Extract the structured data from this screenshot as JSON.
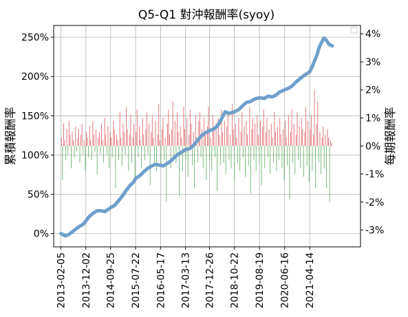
{
  "chart_data": {
    "type": "line",
    "title": "Q5-Q1 對沖報酬率(syoy)",
    "ylabel_left": "累積報酬率",
    "ylabel_right": "每期報酬率",
    "grid": true,
    "left_axis": {
      "ylim": [
        -17,
        265
      ],
      "ticks": [
        0,
        50,
        100,
        150,
        200,
        250
      ],
      "tick_labels": [
        "0%",
        "50%",
        "100%",
        "150%",
        "200%",
        "250%"
      ]
    },
    "right_axis": {
      "ylim": [
        -3.6,
        4.3
      ],
      "ticks": [
        -3,
        -2,
        -1,
        0,
        1,
        2,
        3,
        4
      ],
      "tick_labels": [
        "-3%",
        "-2%",
        "-1%",
        "0%",
        "1%",
        "2%",
        "3%",
        "4%"
      ]
    },
    "x_axis": {
      "range": [
        "2012-11-10",
        "2022-12-15"
      ],
      "ticks": [
        "2013-02-05",
        "2013-12-02",
        "2014-09-25",
        "2015-07-22",
        "2016-05-17",
        "2017-03-13",
        "2017-12-26",
        "2018-10-22",
        "2019-08-19",
        "2020-06-16",
        "2021-04-14"
      ]
    },
    "series": [
      {
        "kind": "line",
        "axis": "left",
        "color": "#6f9fca",
        "x": [
          "2013-02-05",
          "2013-04-01",
          "2013-05-15",
          "2013-07-01",
          "2013-09-01",
          "2013-11-01",
          "2013-12-02",
          "2014-01-15",
          "2014-03-01",
          "2014-04-15",
          "2014-06-01",
          "2014-07-15",
          "2014-09-01",
          "2014-09-25",
          "2014-11-15",
          "2015-01-01",
          "2015-02-15",
          "2015-04-01",
          "2015-05-15",
          "2015-07-01",
          "2015-07-22",
          "2015-09-15",
          "2015-11-01",
          "2015-12-15",
          "2016-02-01",
          "2016-03-15",
          "2016-05-17",
          "2016-06-15",
          "2016-08-01",
          "2016-09-15",
          "2016-11-01",
          "2016-12-15",
          "2017-02-01",
          "2017-03-13",
          "2017-05-01",
          "2017-06-15",
          "2017-08-01",
          "2017-09-15",
          "2017-11-01",
          "2017-12-26",
          "2018-02-15",
          "2018-04-01",
          "2018-05-15",
          "2018-07-01",
          "2018-08-15",
          "2018-10-22",
          "2018-12-15",
          "2019-02-01",
          "2019-03-15",
          "2019-05-01",
          "2019-06-15",
          "2019-08-19",
          "2019-10-15",
          "2019-12-01",
          "2020-01-15",
          "2020-03-01",
          "2020-04-15",
          "2020-06-16",
          "2020-08-01",
          "2020-09-15",
          "2020-11-01",
          "2020-12-15",
          "2021-02-01",
          "2021-04-14",
          "2021-05-15",
          "2021-06-15",
          "2021-07-15",
          "2021-08-01",
          "2021-09-01",
          "2021-10-01",
          "2021-11-01",
          "2021-12-01",
          "2022-01-10"
        ],
        "values": [
          0,
          -3,
          -1,
          3,
          8,
          12,
          16,
          22,
          26,
          29,
          29,
          28,
          31,
          33,
          36,
          42,
          48,
          55,
          61,
          66,
          70,
          74,
          79,
          83,
          86,
          88,
          87,
          86,
          89,
          92,
          97,
          101,
          104,
          107,
          108,
          112,
          118,
          124,
          128,
          131,
          133,
          137,
          145,
          155,
          153,
          155,
          158,
          163,
          167,
          168,
          171,
          173,
          172,
          175,
          174,
          176,
          180,
          183,
          185,
          188,
          193,
          197,
          201,
          206,
          213,
          221,
          229,
          236,
          243,
          249,
          246,
          241,
          239
        ]
      },
      {
        "kind": "bar",
        "axis": "right",
        "positive_color": "#e36a6a",
        "negative_color": "#6ab46a",
        "values": [
          0.3,
          -1.2,
          0.8,
          0.2,
          -0.5,
          0.6,
          -0.3,
          0.9,
          0.4,
          -0.8,
          0.5,
          0.2,
          -0.4,
          0.7,
          -0.2,
          0.3,
          0.6,
          -0.6,
          0.4,
          0.8,
          -0.3,
          0.2,
          -0.9,
          0.5,
          0.3,
          -0.4,
          0.7,
          0.2,
          -0.5,
          0.9,
          0.4,
          -0.2,
          0.6,
          -1.0,
          0.3,
          0.5,
          -0.3,
          0.8,
          0.2,
          -0.6,
          1.0,
          0.4,
          -0.3,
          0.7,
          -0.8,
          0.5,
          0.3,
          -0.4,
          0.9,
          0.6,
          -1.5,
          0.4,
          0.2,
          -0.5,
          1.2,
          0.3,
          -0.7,
          0.8,
          0.5,
          -0.3,
          1.4,
          0.6,
          -0.9,
          0.4,
          1.1,
          -0.6,
          0.3,
          0.8,
          -1.2,
          0.5,
          1.3,
          -0.4,
          0.7,
          0.2,
          -0.8,
          1.0,
          0.4,
          -0.5,
          0.6,
          1.2,
          -0.3,
          0.8,
          -1.4,
          0.5,
          1.1,
          0.3,
          -0.6,
          0.9,
          -0.9,
          0.4,
          1.5,
          0.2,
          -0.7,
          0.6,
          1.0,
          -0.5,
          0.3,
          -2.0,
          0.8,
          1.3,
          0.4,
          -0.8,
          0.6,
          1.6,
          -0.4,
          0.9,
          -0.6,
          1.2,
          0.5,
          -1.8,
          0.7,
          0.3,
          -0.9,
          1.4,
          0.6,
          -0.5,
          1.0,
          -1.1,
          0.4,
          1.3,
          0.8,
          -0.7,
          0.5,
          -1.5,
          1.1,
          0.3,
          -0.6,
          0.9,
          1.2,
          -0.4,
          0.6,
          -0.8,
          1.0,
          0.5,
          -1.2,
          0.7,
          1.4,
          -0.5,
          0.3,
          -0.9,
          1.1,
          0.6,
          -0.4,
          0.8,
          -1.6,
          1.0,
          0.4,
          -0.7,
          1.3,
          0.5,
          -0.6,
          0.9,
          -1.0,
          0.7,
          1.2,
          -0.5,
          0.4,
          -0.8,
          1.5,
          0.6,
          -1.3,
          0.8,
          0.3,
          -0.6,
          1.0,
          -0.9,
          0.5,
          1.2,
          -0.4,
          0.7,
          -1.1,
          0.9,
          0.4,
          -0.7,
          1.4,
          -1.7,
          0.6,
          1.0,
          -0.5,
          0.8,
          -0.9,
          1.1,
          0.4,
          -0.6,
          0.9,
          -1.4,
          0.7,
          1.3,
          -0.8,
          0.5,
          1.0,
          -0.4,
          0.6,
          -1.0,
          0.8,
          0.3,
          -0.6,
          1.2,
          0.5,
          -0.9,
          0.7,
          -0.5,
          1.0,
          0.4,
          -0.8,
          0.6,
          -1.2,
          0.9,
          0.3,
          -0.7,
          1.1,
          -1.9,
          0.5,
          1.3,
          -0.6,
          0.8,
          -1.0,
          0.4,
          1.2,
          -0.5,
          0.7,
          -0.8,
          1.0,
          0.6,
          -1.1,
          0.5,
          1.4,
          -0.7,
          0.9,
          -1.3,
          0.6,
          1.1,
          -0.9,
          0.4,
          2.0,
          -1.5,
          0.8,
          1.6,
          -0.6,
          0.5,
          -1.0,
          0.3,
          0.7,
          -0.8,
          0.4,
          -1.5,
          0.6,
          0.3,
          -2.0,
          0.2,
          0.1
        ]
      }
    ],
    "legend": "top-right"
  }
}
